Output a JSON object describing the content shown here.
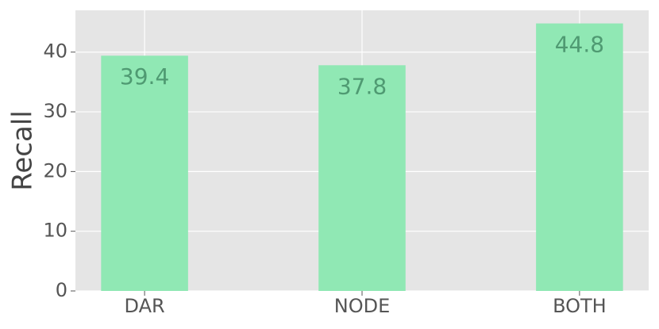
{
  "chart_data": {
    "type": "bar",
    "y_label": "Recall",
    "categories": [
      "DAR",
      "NODE",
      "BOTH"
    ],
    "values": [
      39.4,
      37.8,
      44.8
    ],
    "color": "#90e8b4",
    "label_color": "#4f9a72",
    "ylim": [
      0,
      47
    ],
    "yticks": [
      0,
      10,
      20,
      30,
      40
    ],
    "grid": true
  }
}
